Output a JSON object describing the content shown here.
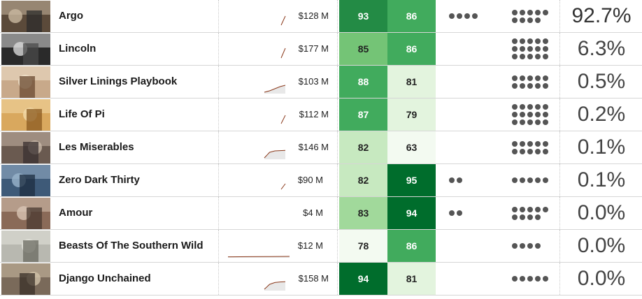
{
  "colors": {
    "score_scale": [
      "#f3faf1",
      "#e3f4de",
      "#c7e9c0",
      "#a1d99b",
      "#74c476",
      "#41ab5d",
      "#238b45",
      "#006d2c"
    ],
    "dot": "#555555",
    "spark_line": "#8b3a1c"
  },
  "movies": [
    {
      "title": "Argo",
      "gross": "$128 M",
      "score_a": 93,
      "score_b": 86,
      "dots_a": 4,
      "dots_b": 9,
      "pct": "92.7%",
      "thumb": "argo-poster-thumbnail",
      "spark": [
        0.2,
        0.85
      ]
    },
    {
      "title": "Lincoln",
      "gross": "$177 M",
      "score_a": 85,
      "score_b": 86,
      "dots_a": 0,
      "dots_b": 15,
      "pct": "6.3%",
      "thumb": "lincoln-poster-thumbnail",
      "spark": [
        0.2,
        0.9
      ]
    },
    {
      "title": "Silver Linings Playbook",
      "gross": "$103 M",
      "score_a": 88,
      "score_b": 81,
      "dots_a": 0,
      "dots_b": 10,
      "pct": "0.5%",
      "thumb": "silver-linings-playbook-poster-thumbnail",
      "spark": [
        0.1,
        0.2,
        0.35,
        0.5,
        0.6
      ]
    },
    {
      "title": "Life Of Pi",
      "gross": "$112 M",
      "score_a": 87,
      "score_b": 79,
      "dots_a": 0,
      "dots_b": 15,
      "pct": "0.2%",
      "thumb": "life-of-pi-poster-thumbnail",
      "spark": [
        0.2,
        0.8
      ]
    },
    {
      "title": "Les Miserables",
      "gross": "$146 M",
      "score_a": 82,
      "score_b": 63,
      "dots_a": 0,
      "dots_b": 10,
      "pct": "0.1%",
      "thumb": "les-miserables-poster-thumbnail",
      "spark": [
        0.1,
        0.5,
        0.6,
        0.62,
        0.64
      ]
    },
    {
      "title": "Zero Dark Thirty",
      "gross": "$90 M",
      "score_a": 82,
      "score_b": 95,
      "dots_a": 2,
      "dots_b": 5,
      "pct": "0.1%",
      "thumb": "zero-dark-thirty-poster-thumbnail",
      "spark": [
        0.2,
        0.6
      ]
    },
    {
      "title": "Amour",
      "gross": "$4 M",
      "score_a": 83,
      "score_b": 94,
      "dots_a": 2,
      "dots_b": 9,
      "pct": "0.0%",
      "thumb": "amour-poster-thumbnail",
      "spark": []
    },
    {
      "title": "Beasts Of The Southern Wild",
      "gross": "$12 M",
      "score_a": 78,
      "score_b": 86,
      "dots_a": 0,
      "dots_b": 4,
      "pct": "0.0%",
      "thumb": "beasts-of-the-southern-wild-poster-thumbnail",
      "spark": [
        0.05,
        0.06,
        0.07,
        0.08,
        0.09,
        0.1
      ]
    },
    {
      "title": "Django Unchained",
      "gross": "$158 M",
      "score_a": 94,
      "score_b": 81,
      "dots_a": 0,
      "dots_b": 5,
      "pct": "0.0%",
      "thumb": "django-unchained-poster-thumbnail",
      "spark": [
        0.1,
        0.45,
        0.58,
        0.62,
        0.64
      ]
    }
  ]
}
